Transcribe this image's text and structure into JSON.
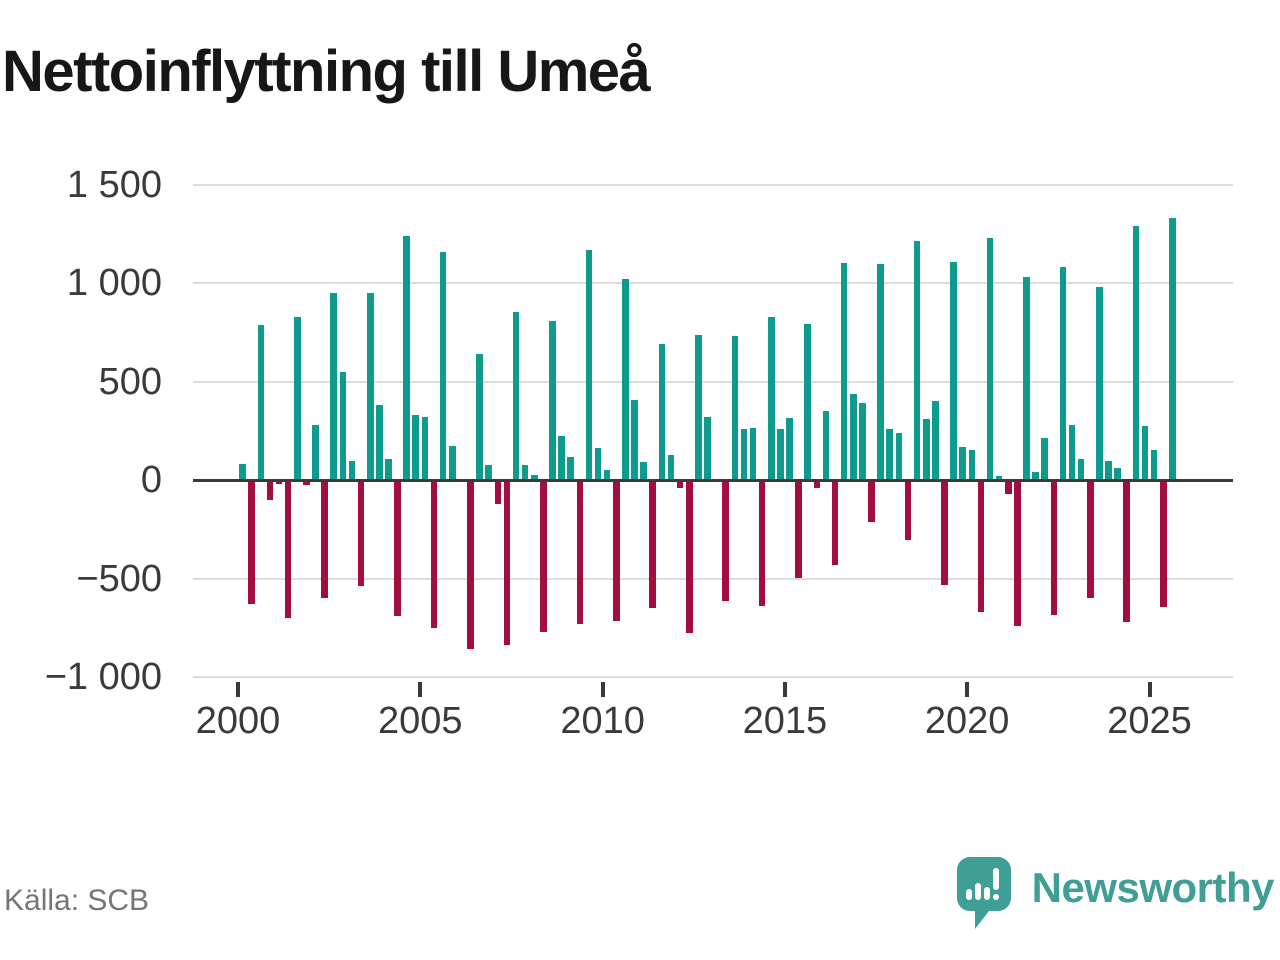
{
  "title": "Nettoinflyttning till Umeå",
  "source": "Källa: SCB",
  "branding": {
    "name": "Newsworthy",
    "logo_icon": "speech-bubble-bar-chart-icon"
  },
  "colors": {
    "positive_bar": "#0e9a8d",
    "negative_bar": "#a40d40",
    "zero_axis": "#3a3a3a",
    "gridline": "#dcdcdc",
    "tick_label": "#3a3a3a",
    "title_text": "#171717",
    "source_text": "#757575",
    "brand_teal": "#3f9e96",
    "background": "#ffffff"
  },
  "chart_data": {
    "type": "bar",
    "title": "Nettoinflyttning till Umeå",
    "xlabel": "",
    "ylabel": "",
    "ylim": [
      -1000,
      1500
    ],
    "grid": true,
    "legend": false,
    "frequency": "quarterly",
    "start_quarter": "2000-Q1",
    "end_quarter": "2025-Q3",
    "start_year": 2000,
    "values": [
      80,
      -630,
      790,
      -100,
      -20,
      -700,
      830,
      -25,
      280,
      -600,
      950,
      550,
      100,
      -540,
      950,
      380,
      110,
      -690,
      1240,
      330,
      320,
      -750,
      1160,
      175,
      0,
      -860,
      640,
      75,
      -120,
      -840,
      855,
      75,
      25,
      -770,
      810,
      225,
      120,
      -730,
      1170,
      165,
      50,
      -715,
      1020,
      410,
      90,
      -650,
      690,
      130,
      -40,
      -775,
      740,
      320,
      0,
      -615,
      735,
      260,
      265,
      -640,
      830,
      260,
      315,
      -495,
      795,
      -40,
      350,
      -430,
      1105,
      440,
      390,
      -215,
      1100,
      260,
      240,
      -305,
      1215,
      310,
      400,
      -535,
      1110,
      170,
      155,
      -670,
      1230,
      20,
      -70,
      -740,
      1035,
      40,
      215,
      -685,
      1085,
      280,
      110,
      -600,
      980,
      100,
      60,
      -720,
      1290,
      275,
      155,
      -645,
      1330
    ],
    "x_ticks": [
      {
        "label": "2000"
      },
      {
        "label": "2005"
      },
      {
        "label": "2010"
      },
      {
        "label": "2015"
      },
      {
        "label": "2020"
      },
      {
        "label": "2025"
      }
    ],
    "y_ticks": [
      {
        "label": "1 500",
        "value": 1500
      },
      {
        "label": "1 000",
        "value": 1000
      },
      {
        "label": "500",
        "value": 500
      },
      {
        "label": "0",
        "value": 0
      },
      {
        "label": "−500",
        "value": -500
      },
      {
        "label": "−1 000",
        "value": -1000
      }
    ]
  }
}
